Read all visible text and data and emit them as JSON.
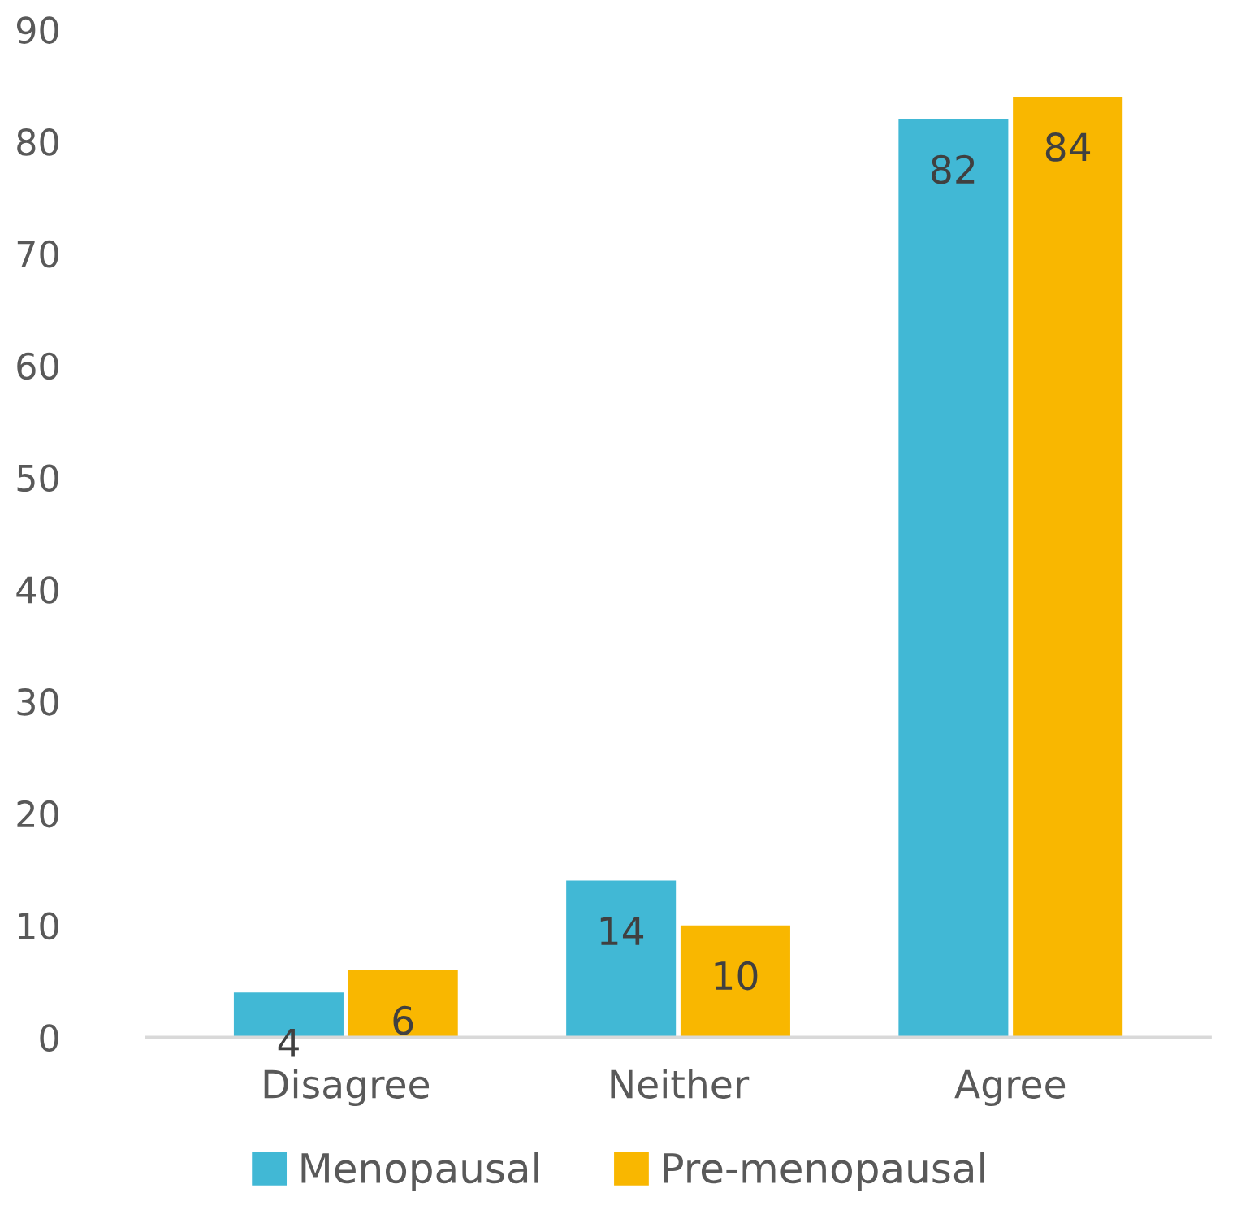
{
  "chart_data": {
    "type": "bar",
    "categories": [
      "Disagree",
      "Neither",
      "Agree"
    ],
    "series": [
      {
        "name": "Menopausal",
        "color": "#41b8d5",
        "values": [
          4,
          14,
          82
        ]
      },
      {
        "name": "Pre-menopausal",
        "color": "#f9b700",
        "values": [
          6,
          10,
          84
        ]
      }
    ],
    "ylim": [
      0,
      90
    ],
    "yticks": [
      0,
      10,
      20,
      30,
      40,
      50,
      60,
      70,
      80,
      90
    ],
    "grid": false,
    "legend": "bottom",
    "data_labels": true
  }
}
